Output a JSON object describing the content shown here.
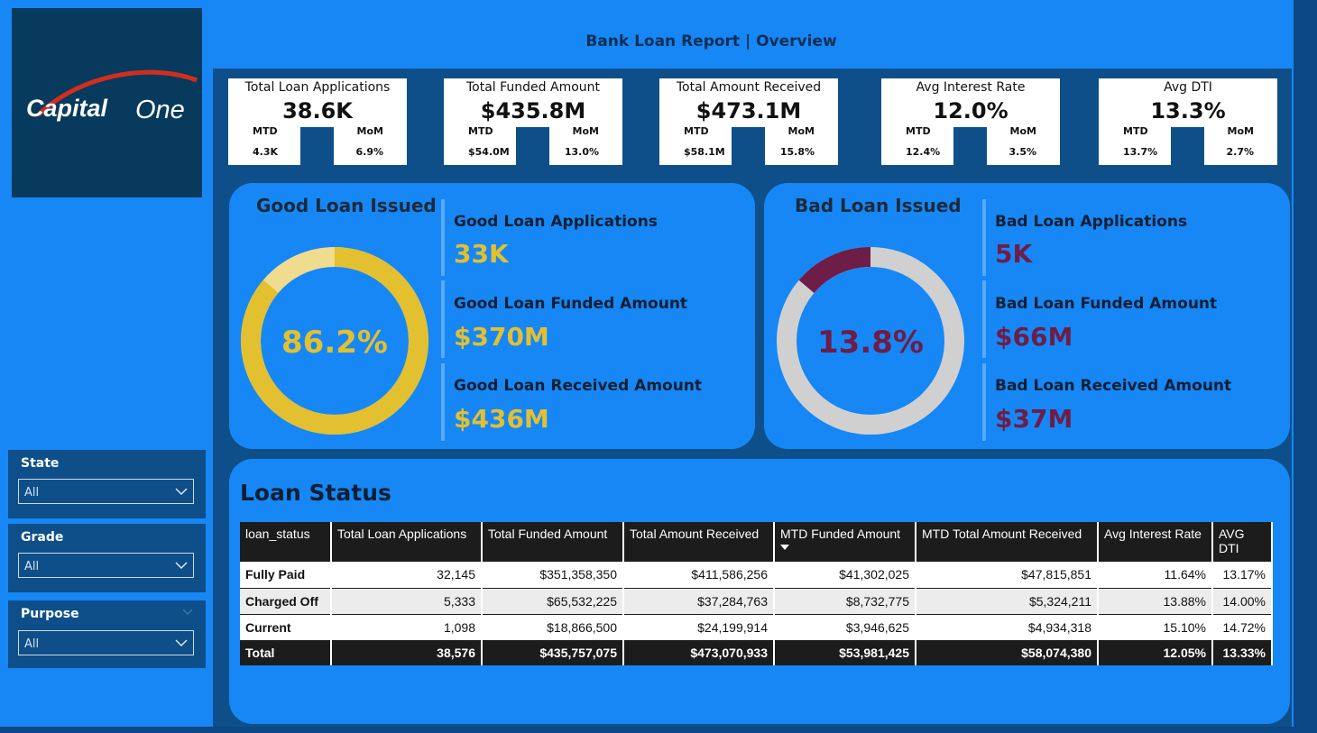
{
  "report": {
    "title": "Bank Loan Report | Overview"
  },
  "logo": {
    "text_capital": "Capital",
    "text_one": "One"
  },
  "colors": {
    "canvas": "#1687f5",
    "panel": "#0e4f8a",
    "good": "#e2c030",
    "good_light": "#efdc8f",
    "bad": "#6e1d47",
    "bad_ring": "#d0d0d0"
  },
  "kpis": [
    {
      "title": "Total Loan Applications",
      "value": "38.6K",
      "mtd_label": "MTD",
      "mtd": "4.3K",
      "mom_label": "MoM",
      "mom": "6.9%"
    },
    {
      "title": "Total Funded Amount",
      "value": "$435.8M",
      "mtd_label": "MTD",
      "mtd": "$54.0M",
      "mom_label": "MoM",
      "mom": "13.0%"
    },
    {
      "title": "Total Amount Received",
      "value": "$473.1M",
      "mtd_label": "MTD",
      "mtd": "$58.1M",
      "mom_label": "MoM",
      "mom": "15.8%"
    },
    {
      "title": "Avg Interest Rate",
      "value": "12.0%",
      "mtd_label": "MTD",
      "mtd": "12.4%",
      "mom_label": "MoM",
      "mom": "3.5%"
    },
    {
      "title": "Avg DTI",
      "value": "13.3%",
      "mtd_label": "MTD",
      "mtd": "13.7%",
      "mom_label": "MoM",
      "mom": "2.7%"
    }
  ],
  "good_loan": {
    "title": "Good Loan Issued",
    "percent": "86.2%",
    "share": 0.862,
    "apps_label": "Good Loan Applications",
    "apps_value": "33K",
    "funded_label": "Good Loan Funded Amount",
    "funded_value": "$370M",
    "received_label": "Good Loan Received Amount",
    "received_value": "$436M"
  },
  "bad_loan": {
    "title": "Bad Loan Issued",
    "percent": "13.8%",
    "share": 0.138,
    "apps_label": "Bad Loan Applications",
    "apps_value": "5K",
    "funded_label": "Bad Loan Funded Amount",
    "funded_value": "$66M",
    "received_label": "Bad Loan Received Amount",
    "received_value": "$37M"
  },
  "slicers": [
    {
      "label": "State",
      "value": "All"
    },
    {
      "label": "Grade",
      "value": "All"
    },
    {
      "label": "Purpose",
      "value": "All"
    }
  ],
  "loan_status": {
    "title": "Loan Status",
    "columns": [
      "loan_status",
      "Total Loan Applications",
      "Total Funded Amount",
      "Total Amount Received",
      "MTD Funded Amount",
      "MTD Total Amount Received",
      "Avg Interest Rate",
      "AVG DTI"
    ],
    "rows": [
      [
        "Fully Paid",
        "32,145",
        "$351,358,350",
        "$411,586,256",
        "$41,302,025",
        "$47,815,851",
        "11.64%",
        "13.17%"
      ],
      [
        "Charged Off",
        "5,333",
        "$65,532,225",
        "$37,284,763",
        "$8,732,775",
        "$5,324,211",
        "13.88%",
        "14.00%"
      ],
      [
        "Current",
        "1,098",
        "$18,866,500",
        "$24,199,914",
        "$3,946,625",
        "$4,934,318",
        "15.10%",
        "14.72%"
      ]
    ],
    "total": [
      "Total",
      "38,576",
      "$435,757,075",
      "$473,070,933",
      "$53,981,425",
      "$58,074,380",
      "12.05%",
      "13.33%"
    ]
  }
}
